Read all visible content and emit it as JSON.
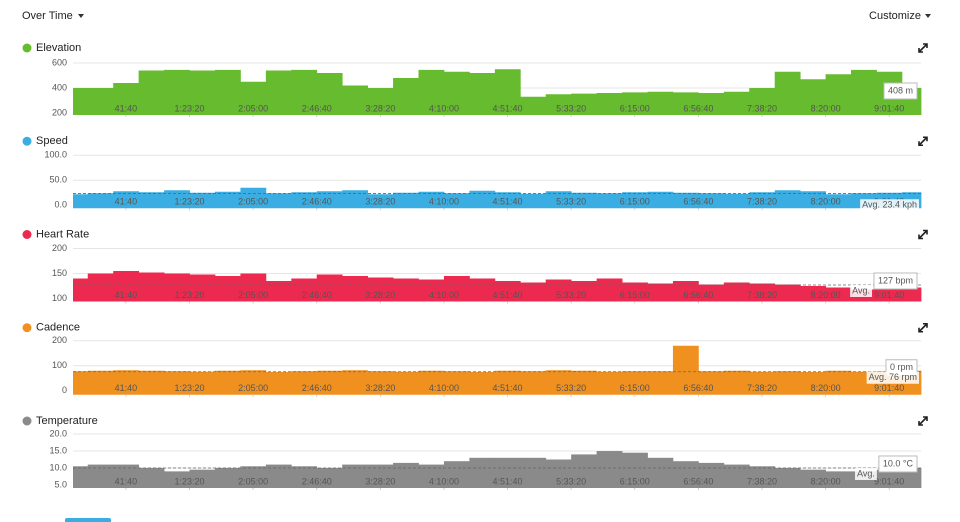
{
  "header": {
    "left": "Over Time",
    "right": "Customize"
  },
  "chart_data": [
    {
      "type": "area",
      "title": "Elevation",
      "color": "#66bb2e",
      "x": [
        500,
        1500,
        2500,
        3500,
        4500,
        5500,
        6500,
        7500,
        8500,
        9500,
        10500,
        11500,
        12500,
        13500,
        14500,
        15500,
        16500,
        17500,
        18500,
        19500,
        20500,
        21500,
        22500,
        23500,
        24500,
        25500,
        26500,
        27500,
        28500,
        29500,
        30500,
        31500,
        32500,
        33500
      ],
      "values": [
        400,
        400,
        440,
        540,
        545,
        540,
        545,
        450,
        540,
        545,
        520,
        420,
        400,
        480,
        545,
        530,
        520,
        550,
        330,
        350,
        355,
        360,
        365,
        370,
        365,
        360,
        370,
        400,
        530,
        470,
        510,
        545,
        530,
        400
      ],
      "xlim": [
        420,
        33750
      ],
      "xticks": [
        {
          "value": 2500,
          "label": "41:40"
        },
        {
          "value": 5000,
          "label": "1:23:20"
        },
        {
          "value": 7500,
          "label": "2:05:00"
        },
        {
          "value": 10000,
          "label": "2:46:40"
        },
        {
          "value": 12500,
          "label": "3:28:20"
        },
        {
          "value": 15000,
          "label": "4:10:00"
        },
        {
          "value": 17500,
          "label": "4:51:40"
        },
        {
          "value": 20000,
          "label": "5:33:20"
        },
        {
          "value": 22500,
          "label": "6:15:00"
        },
        {
          "value": 25000,
          "label": "6:56:40"
        },
        {
          "value": 27500,
          "label": "7:38:20"
        },
        {
          "value": 30000,
          "label": "8:20:00"
        },
        {
          "value": 32500,
          "label": "9:01:40"
        }
      ],
      "ylim": [
        184,
        640
      ],
      "yticks": [
        200,
        400,
        600
      ],
      "grid": true,
      "hover_label": "408 m"
    },
    {
      "type": "area",
      "title": "Speed",
      "color": "#3aaee2",
      "x": [
        500,
        1500,
        2500,
        3500,
        4500,
        5500,
        6500,
        7500,
        8500,
        9500,
        10500,
        11500,
        12500,
        13500,
        14500,
        15500,
        16500,
        17500,
        18500,
        19500,
        20500,
        21500,
        22500,
        23500,
        24500,
        25500,
        26500,
        27500,
        28500,
        29500,
        30500,
        31500,
        32500,
        33500
      ],
      "values": [
        22,
        24,
        28,
        26,
        30,
        25,
        27,
        35,
        24,
        26,
        28,
        30,
        22,
        25,
        27,
        24,
        29,
        26,
        23,
        28,
        25,
        24,
        26,
        27,
        25,
        24,
        23,
        26,
        30,
        28,
        22,
        24,
        25,
        26
      ],
      "xlim": [
        420,
        33750
      ],
      "xticks": [
        {
          "value": 2500,
          "label": "41:40"
        },
        {
          "value": 5000,
          "label": "1:23:20"
        },
        {
          "value": 7500,
          "label": "2:05:00"
        },
        {
          "value": 10000,
          "label": "2:46:40"
        },
        {
          "value": 12500,
          "label": "3:28:20"
        },
        {
          "value": 15000,
          "label": "4:10:00"
        },
        {
          "value": 17500,
          "label": "4:51:40"
        },
        {
          "value": 20000,
          "label": "5:33:20"
        },
        {
          "value": 22500,
          "label": "6:15:00"
        },
        {
          "value": 25000,
          "label": "6:56:40"
        },
        {
          "value": 27500,
          "label": "7:38:20"
        },
        {
          "value": 30000,
          "label": "8:20:00"
        },
        {
          "value": 32500,
          "label": "9:01:40"
        }
      ],
      "ylim": [
        -6,
        108
      ],
      "yticks": [
        {
          "value": 0,
          "label": "0.0"
        },
        {
          "value": 50,
          "label": "50.0"
        },
        {
          "value": 100,
          "label": "100.0"
        }
      ],
      "grid": true,
      "avg": 23.4,
      "avg_label": "Avg. 23.4 kph"
    },
    {
      "type": "area",
      "title": "Heart Rate",
      "color": "#ec2a50",
      "x": [
        500,
        1500,
        2500,
        3500,
        4500,
        5500,
        6500,
        7500,
        8500,
        9500,
        10500,
        11500,
        12500,
        13500,
        14500,
        15500,
        16500,
        17500,
        18500,
        19500,
        20500,
        21500,
        22500,
        23500,
        24500,
        25500,
        26500,
        27500,
        28500,
        29500,
        30500,
        31500,
        32500,
        33500
      ],
      "values": [
        140,
        150,
        155,
        152,
        150,
        148,
        145,
        150,
        135,
        140,
        148,
        145,
        142,
        140,
        138,
        145,
        140,
        135,
        132,
        138,
        135,
        140,
        132,
        130,
        135,
        128,
        132,
        130,
        128,
        125,
        122,
        118,
        120,
        122
      ],
      "xlim": [
        420,
        33750
      ],
      "xticks": [
        {
          "value": 2500,
          "label": "41:40"
        },
        {
          "value": 5000,
          "label": "1:23:20"
        },
        {
          "value": 7500,
          "label": "2:05:00"
        },
        {
          "value": 10000,
          "label": "2:46:40"
        },
        {
          "value": 12500,
          "label": "3:28:20"
        },
        {
          "value": 15000,
          "label": "4:10:00"
        },
        {
          "value": 17500,
          "label": "4:51:40"
        },
        {
          "value": 20000,
          "label": "5:33:20"
        },
        {
          "value": 22500,
          "label": "6:15:00"
        },
        {
          "value": 25000,
          "label": "6:56:40"
        },
        {
          "value": 27500,
          "label": "7:38:20"
        },
        {
          "value": 30000,
          "label": "8:20:00"
        },
        {
          "value": 32500,
          "label": "9:01:40"
        }
      ],
      "ylim": [
        94,
        208
      ],
      "yticks": [
        100,
        150,
        200
      ],
      "grid": true,
      "avg": 127,
      "avg_label": "Avg.",
      "hover_label": "127 bpm"
    },
    {
      "type": "area",
      "title": "Cadence",
      "color": "#f0911f",
      "x": [
        500,
        1500,
        2500,
        3500,
        4500,
        5500,
        6500,
        7500,
        8500,
        9500,
        10500,
        11500,
        12500,
        13500,
        14500,
        15500,
        16500,
        17500,
        18500,
        19500,
        20500,
        21500,
        22500,
        23500,
        24500,
        25500,
        26500,
        27500,
        28500,
        29500,
        30500,
        31500,
        32500,
        33500
      ],
      "values": [
        78,
        80,
        82,
        80,
        78,
        76,
        80,
        82,
        75,
        78,
        80,
        82,
        78,
        76,
        80,
        78,
        75,
        80,
        78,
        82,
        80,
        76,
        78,
        78,
        180,
        78,
        80,
        76,
        78,
        75,
        80,
        76,
        78,
        80
      ],
      "xlim": [
        420,
        33750
      ],
      "xticks": [
        {
          "value": 2500,
          "label": "41:40"
        },
        {
          "value": 5000,
          "label": "1:23:20"
        },
        {
          "value": 7500,
          "label": "2:05:00"
        },
        {
          "value": 10000,
          "label": "2:46:40"
        },
        {
          "value": 12500,
          "label": "3:28:20"
        },
        {
          "value": 15000,
          "label": "4:10:00"
        },
        {
          "value": 17500,
          "label": "4:51:40"
        },
        {
          "value": 20000,
          "label": "5:33:20"
        },
        {
          "value": 22500,
          "label": "6:15:00"
        },
        {
          "value": 25000,
          "label": "6:56:40"
        },
        {
          "value": 27500,
          "label": "7:38:20"
        },
        {
          "value": 30000,
          "label": "8:20:00"
        },
        {
          "value": 32500,
          "label": "9:01:40"
        }
      ],
      "ylim": [
        -16,
        212
      ],
      "yticks": [
        0,
        100,
        200
      ],
      "grid": true,
      "avg": 76,
      "avg_label": "Avg. 76 rpm",
      "hover_label": "0 rpm"
    },
    {
      "type": "area",
      "title": "Temperature",
      "color": "#8a8a8a",
      "x": [
        500,
        1500,
        2500,
        3500,
        4500,
        5500,
        6500,
        7500,
        8500,
        9500,
        10500,
        11500,
        12500,
        13500,
        14500,
        15500,
        16500,
        17500,
        18500,
        19500,
        20500,
        21500,
        22500,
        23500,
        24500,
        25500,
        26500,
        27500,
        28500,
        29500,
        30500,
        31500,
        32500,
        33500
      ],
      "values": [
        10.5,
        11,
        11,
        10,
        9,
        9.5,
        10,
        10.5,
        11,
        10.5,
        10,
        11,
        11,
        11.5,
        11,
        12,
        13,
        13,
        13,
        12.5,
        14,
        15,
        14.5,
        13,
        12,
        11.5,
        11,
        10.5,
        10,
        9.5,
        9,
        9,
        9.5,
        10
      ],
      "xlim": [
        420,
        33750
      ],
      "xticks": [
        {
          "value": 2500,
          "label": "41:40"
        },
        {
          "value": 5000,
          "label": "1:23:20"
        },
        {
          "value": 7500,
          "label": "2:05:00"
        },
        {
          "value": 10000,
          "label": "2:46:40"
        },
        {
          "value": 12500,
          "label": "3:28:20"
        },
        {
          "value": 15000,
          "label": "4:10:00"
        },
        {
          "value": 17500,
          "label": "4:51:40"
        },
        {
          "value": 20000,
          "label": "5:33:20"
        },
        {
          "value": 22500,
          "label": "6:15:00"
        },
        {
          "value": 25000,
          "label": "6:56:40"
        },
        {
          "value": 27500,
          "label": "7:38:20"
        },
        {
          "value": 30000,
          "label": "8:20:00"
        },
        {
          "value": 32500,
          "label": "9:01:40"
        }
      ],
      "ylim": [
        4.1,
        20.9
      ],
      "yticks": [
        {
          "value": 5,
          "label": "5.0"
        },
        {
          "value": 10,
          "label": "10.0"
        },
        {
          "value": 15,
          "label": "15.0"
        },
        {
          "value": 20,
          "label": "20.0"
        }
      ],
      "grid": true,
      "avg": 10,
      "avg_label": "Avg.",
      "hover_label": "10.0 °C"
    }
  ]
}
